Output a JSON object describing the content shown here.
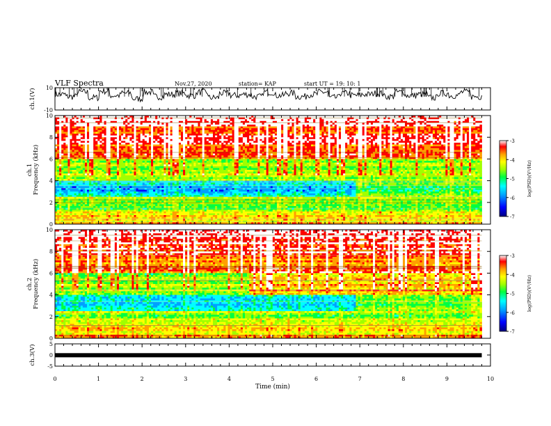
{
  "header": {
    "title": "VLF Spectra",
    "date": "Nov.27, 2020",
    "station": "station= KAP",
    "start": "start  UT =   19: 10: 1"
  },
  "colors": {
    "spectrogram_scale": [
      "#000080",
      "#0000ff",
      "#00a0ff",
      "#00ffff",
      "#00ff40",
      "#a0ff00",
      "#ffff00",
      "#ffa000",
      "#ff0000",
      "#ffffff"
    ],
    "trace": "#000000"
  },
  "chart_data": [
    {
      "type": "line",
      "name": "ch1-waveform",
      "ylabel": "ch.1(V)",
      "ylim": [
        -10,
        10
      ],
      "yticks": [
        "10",
        "-10"
      ],
      "xlim": [
        0,
        10
      ],
      "values": [
        4,
        2,
        6,
        1,
        7,
        3,
        5,
        0,
        6,
        2,
        4,
        5,
        3,
        6,
        1,
        5,
        3,
        4,
        2,
        6,
        3,
        5,
        2,
        4,
        6,
        1,
        5,
        3,
        4,
        5,
        2,
        6,
        3,
        4,
        1,
        5,
        3,
        6,
        2,
        4
      ]
    },
    {
      "type": "heatmap",
      "name": "ch1-spectrogram",
      "ylabel": "ch.1\nFrequency (kHz)",
      "ylim": [
        0,
        10
      ],
      "yticks": [
        "0",
        "2",
        "4",
        "6",
        "8",
        "10"
      ],
      "xlim": [
        0,
        9.8
      ],
      "colorbar": {
        "label": "log(PSD)(V²/Hz)",
        "range": [
          -7,
          -3
        ],
        "ticks": [
          "-3",
          "-4",
          "-5",
          "-6",
          "-7"
        ]
      }
    },
    {
      "type": "heatmap",
      "name": "ch2-spectrogram",
      "ylabel": "ch.2\nFrequency (kHz)",
      "ylim": [
        0,
        10
      ],
      "yticks": [
        "0",
        "2",
        "4",
        "6",
        "8",
        "10"
      ],
      "xlim": [
        0,
        9.8
      ],
      "colorbar": {
        "label": "log(PSD)(V²/Hz)",
        "range": [
          -7,
          -3
        ],
        "ticks": [
          "-3",
          "-4",
          "-5",
          "-6",
          "-7"
        ]
      }
    },
    {
      "type": "line",
      "name": "ch3-waveform",
      "ylabel": "ch.3(V)",
      "ylim": [
        -5,
        5
      ],
      "yticks": [
        "5",
        "0",
        "-5"
      ],
      "xlim": [
        0,
        10
      ],
      "value": -0.1
    }
  ],
  "xaxis": {
    "label": "Time  (min)",
    "ticks": [
      "0",
      "1",
      "2",
      "3",
      "4",
      "5",
      "6",
      "7",
      "8",
      "9",
      "10"
    ]
  }
}
